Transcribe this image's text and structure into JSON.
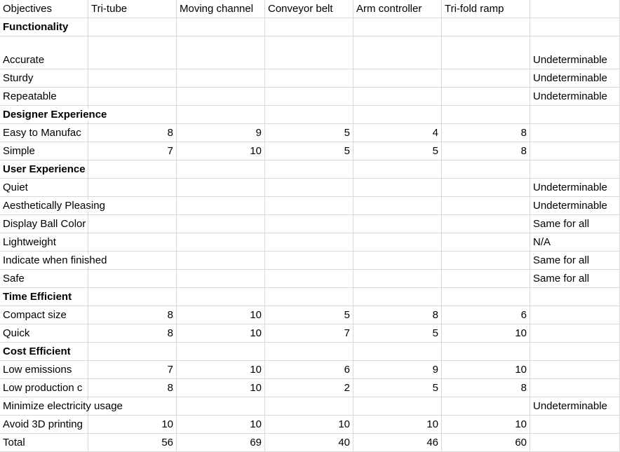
{
  "table": {
    "header": [
      "Objectives",
      "Tri-tube",
      "Moving channel",
      "Conveyor belt",
      "Arm controller",
      "Tri-fold ramp",
      null
    ],
    "rows": [
      [
        "Functionality",
        null,
        null,
        null,
        null,
        null,
        null
      ],
      [
        "Accurate",
        null,
        null,
        null,
        null,
        null,
        "Undeterminable"
      ],
      [
        "Sturdy",
        null,
        null,
        null,
        null,
        null,
        "Undeterminable"
      ],
      [
        "Repeatable",
        null,
        null,
        null,
        null,
        null,
        "Undeterminable"
      ],
      [
        "Designer Experience",
        null,
        null,
        null,
        null,
        null,
        null
      ],
      [
        "Easy to Manufac",
        8,
        9,
        5,
        4,
        8,
        null
      ],
      [
        "Simple",
        7,
        10,
        5,
        5,
        8,
        null
      ],
      [
        "User Experience",
        null,
        null,
        null,
        null,
        null,
        null
      ],
      [
        "Quiet",
        null,
        null,
        null,
        null,
        null,
        "Undeterminable"
      ],
      [
        "Aesthetically Pleasing",
        null,
        null,
        null,
        null,
        null,
        "Undeterminable"
      ],
      [
        "Display Ball Color",
        null,
        null,
        null,
        null,
        null,
        "Same for all"
      ],
      [
        "Lightweight",
        null,
        null,
        null,
        null,
        null,
        "N/A"
      ],
      [
        "Indicate when finished",
        null,
        null,
        null,
        null,
        null,
        "Same for all"
      ],
      [
        "Safe",
        null,
        null,
        null,
        null,
        null,
        "Same for all"
      ],
      [
        "Time Efficient",
        null,
        null,
        null,
        null,
        null,
        null
      ],
      [
        "Compact size",
        8,
        10,
        5,
        8,
        6,
        null
      ],
      [
        "Quick",
        8,
        10,
        7,
        5,
        10,
        null
      ],
      [
        "Cost Efficient",
        null,
        null,
        null,
        null,
        null,
        null
      ],
      [
        "Low emissions",
        7,
        10,
        6,
        9,
        10,
        null
      ],
      [
        "Low production c",
        8,
        10,
        2,
        5,
        8,
        null
      ],
      [
        "Minimize electricity usage",
        null,
        null,
        null,
        null,
        null,
        "Undeterminable"
      ],
      [
        "Avoid 3D printing",
        10,
        10,
        10,
        10,
        10,
        null
      ],
      [
        "Total",
        56,
        69,
        40,
        46,
        60,
        null
      ]
    ]
  }
}
